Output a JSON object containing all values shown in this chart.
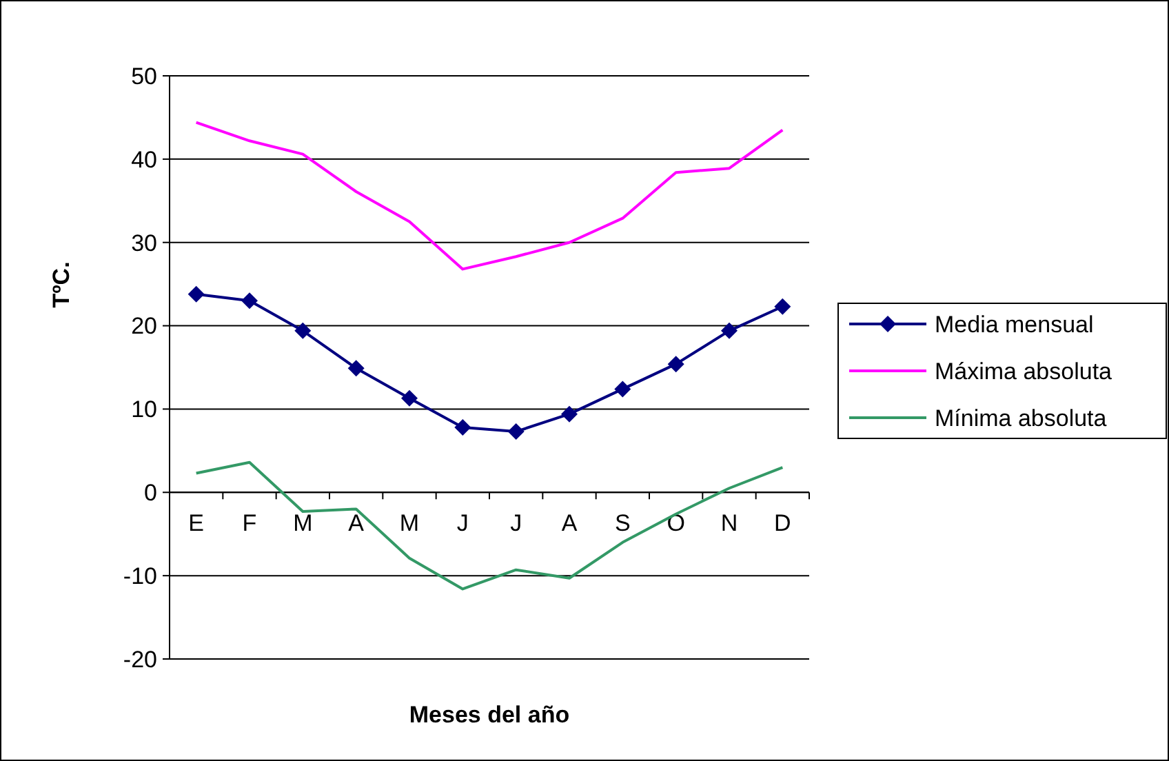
{
  "chart_data": {
    "type": "line",
    "xlabel": "Meses del año",
    "ylabel": "TºC.",
    "categories": [
      "E",
      "F",
      "M",
      "A",
      "M",
      "J",
      "J",
      "A",
      "S",
      "O",
      "N",
      "D"
    ],
    "series": [
      {
        "name": "Media mensual",
        "color": "#000080",
        "marker": "diamond",
        "values": [
          23.8,
          23,
          19.4,
          14.9,
          11.3,
          7.8,
          7.3,
          9.4,
          12.4,
          15.4,
          19.4,
          22.3
        ]
      },
      {
        "name": "Máxima absoluta",
        "color": "#ff00ff",
        "marker": "none",
        "values": [
          44.4,
          42.2,
          40.6,
          36.1,
          32.5,
          26.8,
          28.3,
          30,
          32.9,
          38.4,
          38.9,
          43.5
        ]
      },
      {
        "name": "Mínima absoluta",
        "color": "#339966",
        "marker": "none",
        "values": [
          2.3,
          3.6,
          -2.3,
          -2,
          -7.9,
          -11.6,
          -9.3,
          -10.3,
          -6,
          -2.6,
          0.5,
          3
        ]
      }
    ],
    "ylim": [
      -20,
      50
    ],
    "yticks": [
      -20,
      -10,
      0,
      10,
      20,
      30,
      40,
      50
    ],
    "grid": "y",
    "legend": "right",
    "line_style": "solid"
  }
}
